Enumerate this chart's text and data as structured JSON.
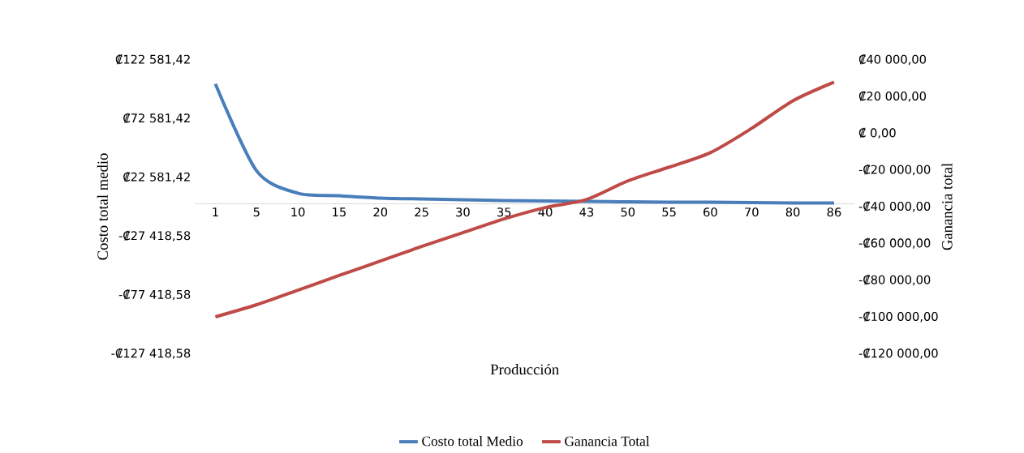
{
  "chart_data": {
    "type": "line",
    "xlabel": "Producción",
    "ylabel": "Costo total medio",
    "y2label": "Ganancia total",
    "categories": [
      "1",
      "5",
      "10",
      "15",
      "20",
      "25",
      "30",
      "35",
      "40",
      "43",
      "50",
      "55",
      "60",
      "70",
      "80",
      "86"
    ],
    "series": [
      {
        "name": "Costo total Medio",
        "color": "#4a7ebb",
        "values": [
          102000,
          28000,
          9000,
          6900,
          4800,
          4100,
          3400,
          2800,
          2400,
          2100,
          1700,
          1400,
          1400,
          1000,
          700,
          700
        ]
      },
      {
        "name": "Ganancia Total",
        "color": "#be4b48",
        "axis": "y2",
        "values": [
          -100000,
          -93400,
          -85500,
          -77500,
          -69600,
          -61700,
          -54200,
          -46700,
          -40500,
          -36100,
          -26000,
          -18500,
          -10600,
          2600,
          17600,
          27800
        ]
      }
    ],
    "ylim": [
      -127418.58,
      122581.42
    ],
    "yticks": [
      {
        "value": -127418.58,
        "label": "-₡127 418,58"
      },
      {
        "value": -77418.58,
        "label": "-₡77 418,58"
      },
      {
        "value": -27418.58,
        "label": "-₡27 418,58"
      },
      {
        "value": 22581.42,
        "label": "₡22 581,42"
      },
      {
        "value": 72581.42,
        "label": "₡72 581,42"
      },
      {
        "value": 122581.42,
        "label": "₡122 581,42"
      }
    ],
    "y2lim": [
      -120000,
      40000
    ],
    "y2ticks": [
      {
        "value": -120000,
        "label": "-₡120 000,00"
      },
      {
        "value": -100000,
        "label": "-₡100 000,00"
      },
      {
        "value": -80000,
        "label": "-₡80 000,00"
      },
      {
        "value": -60000,
        "label": "-₡60 000,00"
      },
      {
        "value": -40000,
        "label": "-₡40 000,00"
      },
      {
        "value": -20000,
        "label": "-₡20 000,00"
      },
      {
        "value": 0,
        "label": "₡ 0,00"
      },
      {
        "value": 20000,
        "label": "₡20 000,00"
      },
      {
        "value": 40000,
        "label": "₡40 000,00"
      }
    ],
    "legend": "bottom"
  }
}
